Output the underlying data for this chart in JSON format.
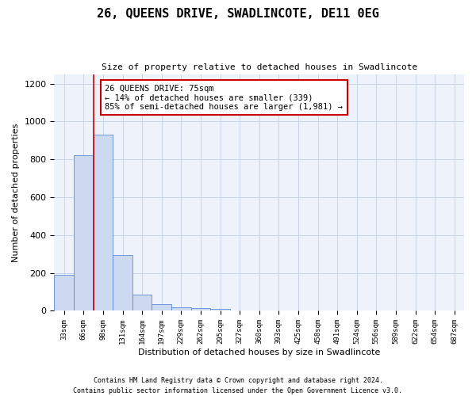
{
  "title": "26, QUEENS DRIVE, SWADLINCOTE, DE11 0EG",
  "subtitle": "Size of property relative to detached houses in Swadlincote",
  "xlabel": "Distribution of detached houses by size in Swadlincote",
  "ylabel": "Number of detached properties",
  "bar_color": "#ccd9f0",
  "bar_edge_color": "#5b8cd4",
  "grid_color": "#c8d4e8",
  "background_color": "#eef2fb",
  "annotation_box_color": "#ffffff",
  "annotation_box_edge": "#cc0000",
  "vline_color": "#cc0000",
  "categories": [
    "33sqm",
    "66sqm",
    "98sqm",
    "131sqm",
    "164sqm",
    "197sqm",
    "229sqm",
    "262sqm",
    "295sqm",
    "327sqm",
    "360sqm",
    "393sqm",
    "425sqm",
    "458sqm",
    "491sqm",
    "524sqm",
    "556sqm",
    "589sqm",
    "622sqm",
    "654sqm",
    "687sqm"
  ],
  "values": [
    190,
    820,
    930,
    295,
    85,
    35,
    20,
    15,
    10,
    0,
    0,
    0,
    0,
    0,
    0,
    0,
    0,
    0,
    0,
    0,
    0
  ],
  "vline_position": 1.5,
  "annotation_text": "26 QUEENS DRIVE: 75sqm\n← 14% of detached houses are smaller (339)\n85% of semi-detached houses are larger (1,981) →",
  "ylim": [
    0,
    1250
  ],
  "yticks": [
    0,
    200,
    400,
    600,
    800,
    1000,
    1200
  ],
  "footer_line1": "Contains HM Land Registry data © Crown copyright and database right 2024.",
  "footer_line2": "Contains public sector information licensed under the Open Government Licence v3.0."
}
